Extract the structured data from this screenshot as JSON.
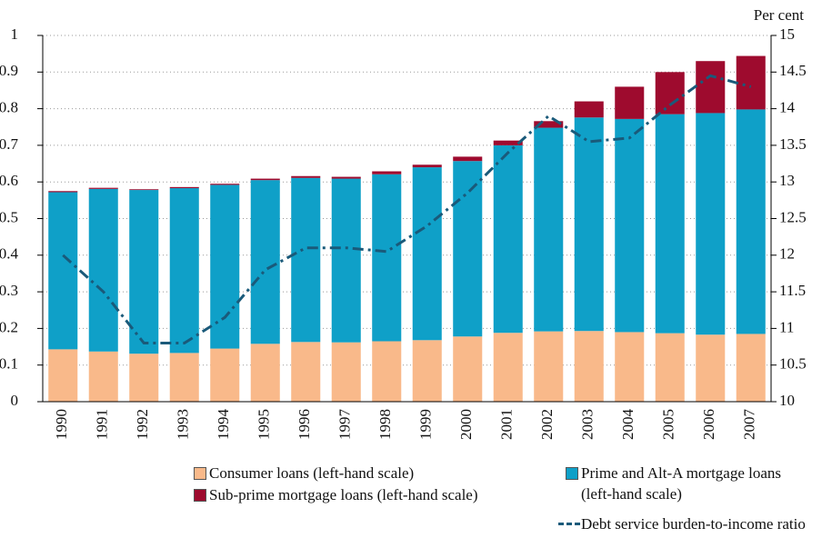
{
  "chart_data": {
    "type": "stacked_bar_line",
    "y2_title": "Per cent",
    "categories": [
      "1990",
      "1991",
      "1992",
      "1993",
      "1994",
      "1995",
      "1996",
      "1997",
      "1998",
      "1999",
      "2000",
      "2001",
      "2002",
      "2003",
      "2004",
      "2005",
      "2006",
      "2007"
    ],
    "series": [
      {
        "name": "Consumer loans (left-hand scale)",
        "color": "#f9b98a",
        "values": [
          0.143,
          0.137,
          0.131,
          0.133,
          0.145,
          0.158,
          0.163,
          0.162,
          0.165,
          0.168,
          0.178,
          0.188,
          0.192,
          0.193,
          0.19,
          0.187,
          0.183,
          0.185
        ]
      },
      {
        "name": "Prime and Alt-A mortgage loans (left-hand scale)",
        "color": "#0fa0c8",
        "values": [
          0.429,
          0.444,
          0.447,
          0.45,
          0.447,
          0.447,
          0.448,
          0.447,
          0.456,
          0.472,
          0.479,
          0.512,
          0.556,
          0.583,
          0.582,
          0.598,
          0.605,
          0.613
        ]
      },
      {
        "name": "Sub-prime mortgage loans (left-hand scale)",
        "color": "#9e0b2e",
        "values": [
          0.003,
          0.003,
          0.002,
          0.003,
          0.003,
          0.004,
          0.005,
          0.005,
          0.008,
          0.007,
          0.012,
          0.013,
          0.018,
          0.044,
          0.088,
          0.115,
          0.142,
          0.146
        ]
      },
      {
        "name": "Debt service burden-to-income ratio",
        "color": "#1a5a7a",
        "axis": "y2",
        "type": "line",
        "values": [
          12.0,
          11.5,
          10.8,
          10.8,
          11.15,
          11.8,
          12.1,
          12.1,
          12.05,
          12.4,
          12.85,
          13.4,
          13.9,
          13.55,
          13.6,
          14.05,
          14.45,
          14.3
        ]
      }
    ],
    "ylim": [
      0,
      1
    ],
    "yticks": [
      0,
      0.1,
      0.2,
      0.3,
      0.4,
      0.5,
      0.6,
      0.7,
      0.8,
      0.9,
      1
    ],
    "y2lim": [
      10,
      15
    ],
    "y2ticks": [
      10,
      10.5,
      11,
      11.5,
      12,
      12.5,
      13,
      13.5,
      14,
      14.5,
      15
    ],
    "grid": true
  }
}
